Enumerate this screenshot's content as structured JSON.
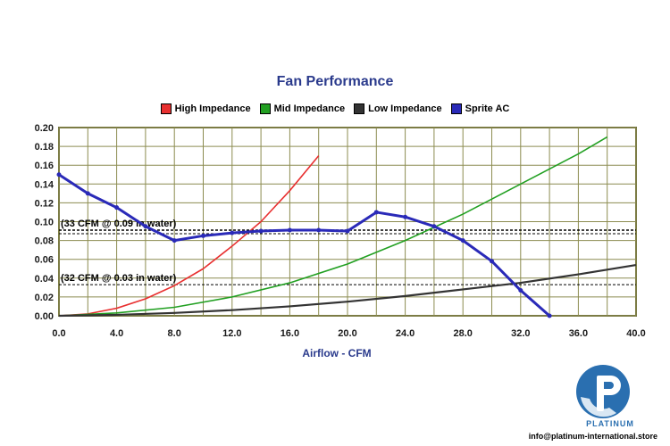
{
  "chart_data": {
    "type": "line",
    "title": "Fan Performance",
    "xlabel": "Airflow - CFM",
    "ylabel": "",
    "xlim": [
      0,
      40
    ],
    "ylim": [
      0,
      0.2
    ],
    "x_ticks": [
      "0.0",
      "4.0",
      "8.0",
      "12.0",
      "16.0",
      "20.0",
      "24.0",
      "28.0",
      "32.0",
      "36.0",
      "40.0"
    ],
    "y_ticks": [
      "0.00",
      "0.02",
      "0.04",
      "0.06",
      "0.08",
      "0.10",
      "0.12",
      "0.14",
      "0.16",
      "0.18",
      "0.20"
    ],
    "grid": true,
    "legend_position": "top",
    "series": [
      {
        "name": "High Impedance",
        "color": "#e83030",
        "x": [
          0,
          2,
          4,
          6,
          8,
          10,
          12,
          14,
          16,
          18
        ],
        "y": [
          0,
          0.002,
          0.008,
          0.018,
          0.032,
          0.05,
          0.074,
          0.1,
          0.133,
          0.17
        ]
      },
      {
        "name": "Mid Impedance",
        "color": "#22a022",
        "x": [
          0,
          4,
          8,
          12,
          16,
          20,
          24,
          28,
          32,
          36,
          38
        ],
        "y": [
          0,
          0.003,
          0.009,
          0.02,
          0.035,
          0.055,
          0.08,
          0.108,
          0.14,
          0.172,
          0.19
        ]
      },
      {
        "name": "Low Impedance",
        "color": "#333333",
        "x": [
          0,
          4,
          8,
          12,
          16,
          20,
          24,
          28,
          32,
          36,
          40
        ],
        "y": [
          0,
          0.001,
          0.003,
          0.006,
          0.01,
          0.015,
          0.021,
          0.028,
          0.035,
          0.044,
          0.054
        ]
      },
      {
        "name": "Sprite AC",
        "color": "#2a2ab8",
        "x": [
          0,
          2,
          4,
          6,
          8,
          10,
          12,
          14,
          16,
          18,
          20,
          22,
          24,
          26,
          28,
          30,
          32,
          34
        ],
        "y": [
          0.15,
          0.13,
          0.115,
          0.095,
          0.08,
          0.085,
          0.088,
          0.09,
          0.091,
          0.091,
          0.09,
          0.11,
          0.105,
          0.095,
          0.08,
          0.058,
          0.027,
          0.0
        ]
      }
    ],
    "reference_lines": [
      {
        "label": "(33 CFM @ 0.09 in water)",
        "y": 0.091
      },
      {
        "label": "(32 CFM @ 0.03 in water)",
        "y": 0.033
      }
    ]
  },
  "logo": {
    "text": "PLATINUM",
    "contact": "info@platinum-international.store"
  }
}
